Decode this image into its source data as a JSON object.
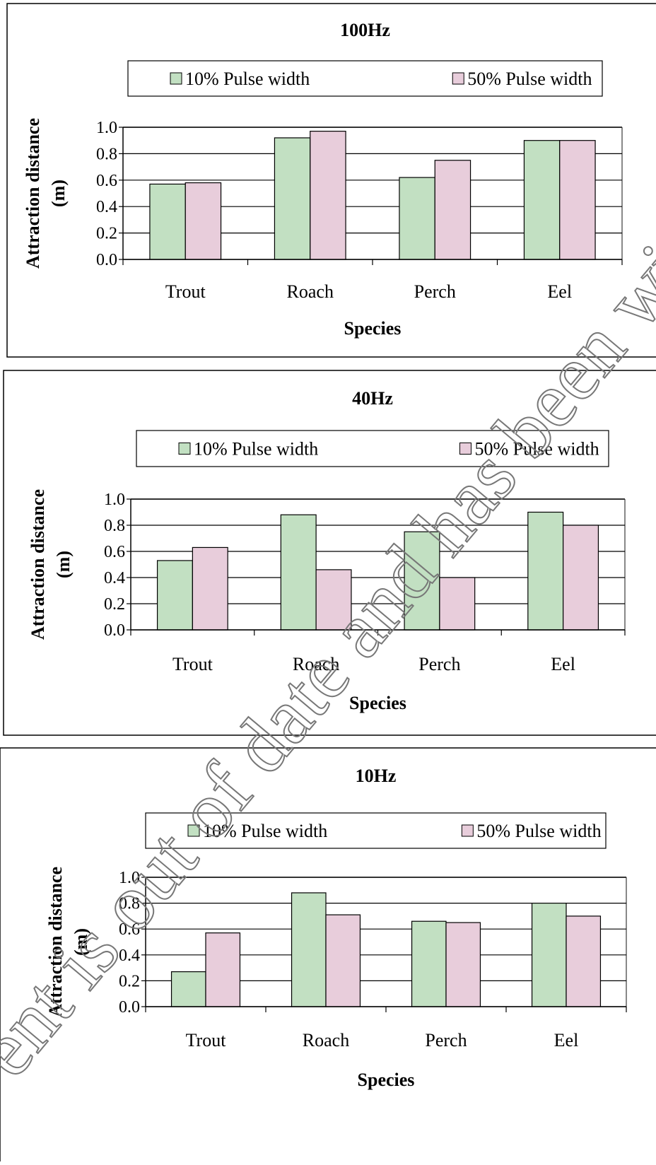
{
  "chart_data": [
    {
      "type": "bar",
      "title": "100Hz",
      "xlabel": "Species",
      "ylabel": [
        "Attraction distance",
        "(m)"
      ],
      "categories": [
        "Trout",
        "Roach",
        "Perch",
        "Eel"
      ],
      "series": [
        {
          "name": "10% Pulse width",
          "color": "#c2e0c2",
          "values": [
            0.57,
            0.92,
            0.62,
            0.9
          ]
        },
        {
          "name": "50% Pulse width",
          "color": "#e8cddb",
          "values": [
            0.58,
            0.97,
            0.75,
            0.9
          ]
        }
      ],
      "ylim": [
        0,
        1
      ],
      "yticks": [
        {
          "value": 0,
          "label": "0.0"
        },
        0.2,
        0.4,
        0.6,
        0.8,
        {
          "value": 1,
          "label": "1.0"
        }
      ],
      "grid": true
    },
    {
      "type": "bar",
      "title": "40Hz",
      "xlabel": "Species",
      "ylabel": [
        "Attraction distance",
        "(m)"
      ],
      "categories": [
        "Trout",
        "Roach",
        "Perch",
        "Eel"
      ],
      "series": [
        {
          "name": "10% Pulse width",
          "color": "#c2e0c2",
          "values": [
            0.53,
            0.88,
            0.75,
            0.9
          ]
        },
        {
          "name": "50% Pulse width",
          "color": "#e8cddb",
          "values": [
            0.63,
            0.46,
            0.4,
            0.8
          ]
        }
      ],
      "ylim": [
        0,
        1
      ],
      "yticks": [
        {
          "value": 0,
          "label": "0.0"
        },
        0.2,
        0.4,
        0.6,
        0.8,
        {
          "value": 1,
          "label": "1.0"
        }
      ],
      "grid": true
    },
    {
      "type": "bar",
      "title": "10Hz",
      "xlabel": "Species",
      "ylabel": [
        "Attraction distance",
        "(m)"
      ],
      "categories": [
        "Trout",
        "Roach",
        "Perch",
        "Eel"
      ],
      "series": [
        {
          "name": "10% Pulse width",
          "color": "#c2e0c2",
          "values": [
            0.27,
            0.88,
            0.66,
            0.8
          ]
        },
        {
          "name": "50% Pulse width",
          "color": "#e8cddb",
          "values": [
            0.57,
            0.71,
            0.65,
            0.7
          ]
        }
      ],
      "ylim": [
        0,
        1
      ],
      "yticks": [
        {
          "value": 0,
          "label": "0.0"
        },
        0.2,
        0.4,
        0.6,
        0.8,
        {
          "value": 1,
          "label": "1.0"
        }
      ],
      "grid": true
    }
  ],
  "watermark": "ent is out of date and has been withdrawn ("
}
